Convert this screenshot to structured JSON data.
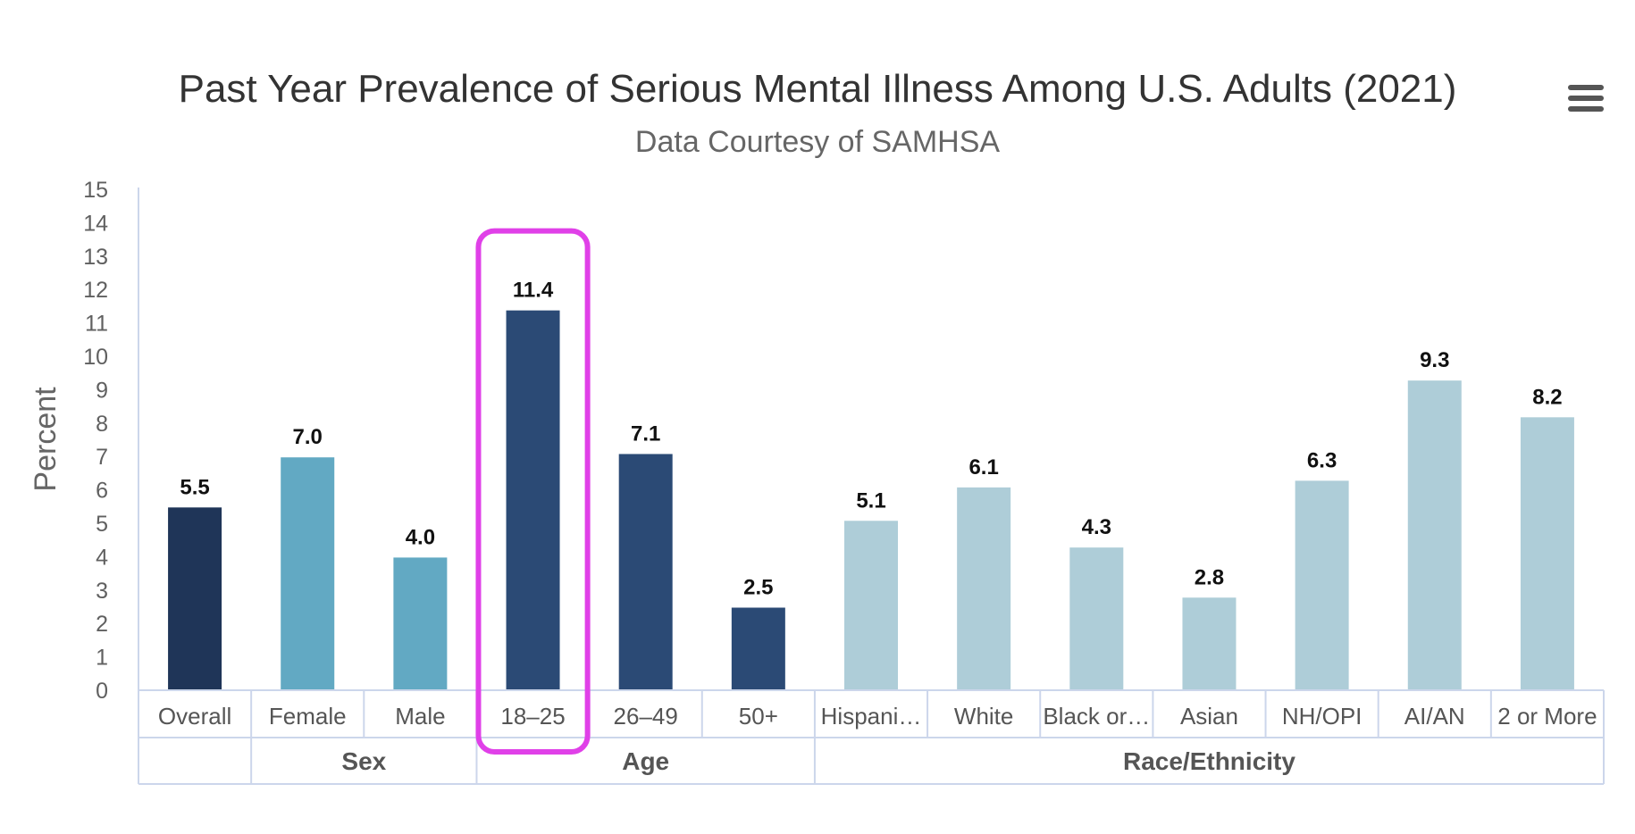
{
  "chart_data": {
    "type": "bar",
    "title": "Past Year Prevalence of Serious Mental Illness Among U.S. Adults (2021)",
    "subtitle": "Data Courtesy of SAMHSA",
    "xlabel": "",
    "ylabel": "Percent",
    "ylim": [
      0,
      15
    ],
    "yticks": [
      0,
      1,
      2,
      3,
      4,
      5,
      6,
      7,
      8,
      9,
      10,
      11,
      12,
      13,
      14,
      15
    ],
    "grid": false,
    "categories": [
      "Overall",
      "Female",
      "Male",
      "18–25",
      "26–49",
      "50+",
      "Hispani…",
      "White",
      "Black or…",
      "Asian",
      "NH/OPI",
      "AI/AN",
      "2 or More"
    ],
    "values": [
      5.5,
      7.0,
      4.0,
      11.4,
      7.1,
      2.5,
      5.1,
      6.1,
      4.3,
      2.8,
      6.3,
      9.3,
      8.2
    ],
    "data_labels": [
      "5.5",
      "7.0",
      "4.0",
      "11.4",
      "7.1",
      "2.5",
      "5.1",
      "6.1",
      "4.3",
      "2.8",
      "6.3",
      "9.3",
      "8.2"
    ],
    "groups": [
      {
        "name": "",
        "count": 1
      },
      {
        "name": "Sex",
        "count": 2
      },
      {
        "name": "Age",
        "count": 3
      },
      {
        "name": "Race/Ethnicity",
        "count": 7
      }
    ],
    "highlighted_category": "18–25"
  },
  "colors": {
    "overall": "#1f3558",
    "sex": "#62a9c3",
    "age": "#2b4a75",
    "race": "#aecdd8",
    "highlight_box": "#e040e8",
    "axis": "#ccd6eb"
  },
  "icons": {
    "menu": "hamburger-menu-icon"
  }
}
